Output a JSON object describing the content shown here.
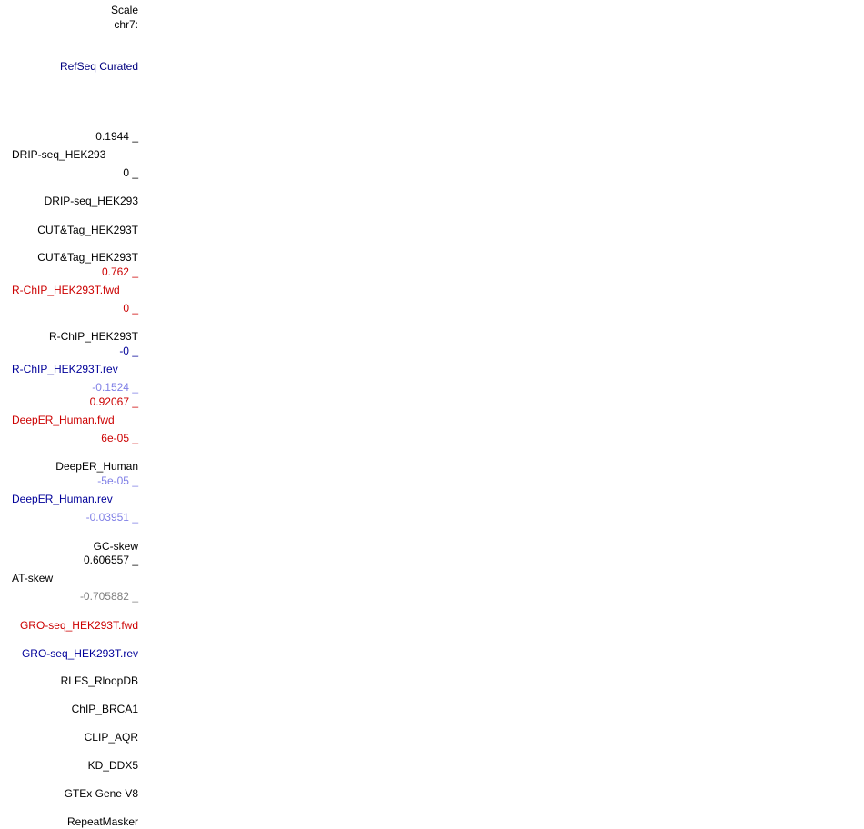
{
  "header": {
    "scale": "Scale",
    "chrom": "chr7:"
  },
  "tracks": {
    "refseq": "RefSeq Curated",
    "drip_max": "0.1944 _",
    "drip_name": "DRIP-seq_HEK293",
    "drip_min": "0 _",
    "drip_sub": "DRIP-seq_HEK293",
    "cut1": "CUT&Tag_HEK293T",
    "cut2": "CUT&Tag_HEK293T",
    "rchip_fwd_max": "0.762 _",
    "rchip_fwd_name": "R-ChIP_HEK293T.fwd",
    "rchip_fwd_min": "0 _",
    "rchip_group": "R-ChIP_HEK293T",
    "rchip_rev_max": "-0 _",
    "rchip_rev_name": "R-ChIP_HEK293T.rev",
    "rchip_rev_min": "-0.1524 _",
    "deeper_fwd_max": "0.92067 _",
    "deeper_fwd_name": "DeepER_Human.fwd",
    "deeper_fwd_min": "6e-05 _",
    "deeper_group": "DeepER_Human",
    "deeper_rev_max": "-5e-05 _",
    "deeper_rev_name": "DeepER_Human.rev",
    "deeper_rev_min": "-0.03951 _",
    "gcskew": "GC-skew",
    "at_max": "0.606557 _",
    "at_name": "AT-skew",
    "at_min": "-0.705882 _",
    "gro_fwd": "GRO-seq_HEK293T.fwd",
    "gro_rev": "GRO-seq_HEK293T.rev",
    "rlfs": "RLFS_RloopDB",
    "chip_brca1": "ChIP_BRCA1",
    "clip_aqr": "CLIP_AQR",
    "kd_ddx5": "KD_DDX5",
    "gtex": "GTEx Gene V8",
    "repeatmasker": "RepeatMasker"
  },
  "colors": {
    "default": "#000000",
    "forward": "#cc0000",
    "reverse": "#000099",
    "reverse_light": "#7f7fe6",
    "gray": "#808080",
    "refseq": "#00007f"
  }
}
